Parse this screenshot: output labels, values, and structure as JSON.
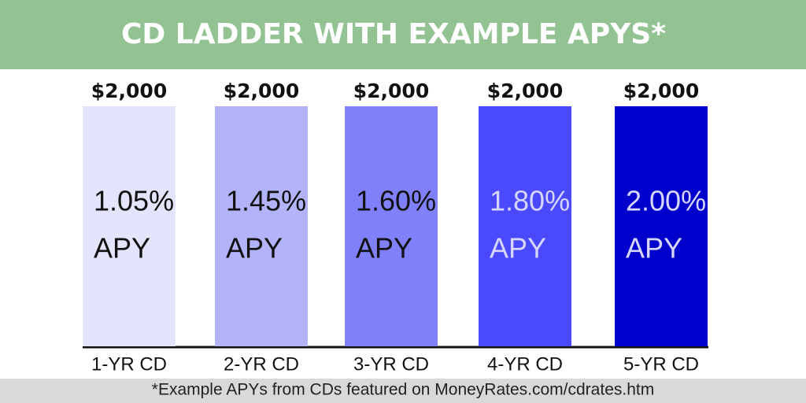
{
  "chart_data": {
    "type": "bar",
    "title": "CD LADDER WITH EXAMPLE APYS*",
    "categories": [
      "1-YR CD",
      "2-YR CD",
      "3-YR CD",
      "4-YR CD",
      "5-YR CD"
    ],
    "values": [
      2000,
      2000,
      2000,
      2000,
      2000
    ],
    "value_labels": [
      "$2,000",
      "$2,000",
      "$2,000",
      "$2,000",
      "$2,000"
    ],
    "colors": [
      "#e4e4fc",
      "#b3b3f9",
      "#8080fb",
      "#4a4afc",
      "#0000cc"
    ],
    "annotations": [
      "1.05%",
      "1.45%",
      "1.60%",
      "1.80%",
      "2.00%"
    ],
    "annotation_suffix": "APY",
    "footnote": "*Example APYs from CDs featured on MoneyRates.com/cdrates.htm"
  }
}
